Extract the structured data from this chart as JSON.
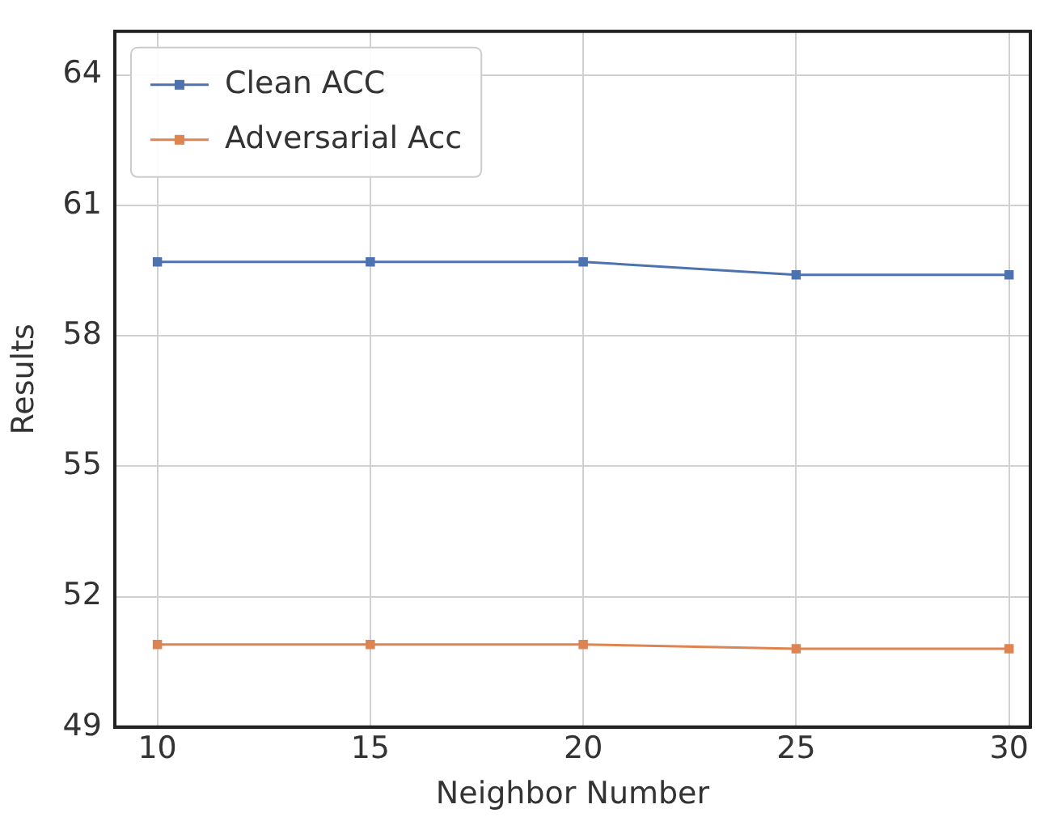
{
  "chart_data": {
    "type": "line",
    "xlabel": "Neighbor Number",
    "ylabel": "Results",
    "x": [
      10,
      15,
      20,
      25,
      30
    ],
    "series": [
      {
        "name": "Clean ACC",
        "color": "#4c72b0",
        "values": [
          59.7,
          59.7,
          59.7,
          59.4,
          59.4
        ]
      },
      {
        "name": "Adversarial Acc",
        "color": "#dd8452",
        "values": [
          50.9,
          50.9,
          50.9,
          50.8,
          50.8
        ]
      }
    ],
    "xlim": [
      9,
      30.5
    ],
    "xticks": [
      10,
      15,
      20,
      25,
      30
    ],
    "ylim": [
      49,
      65
    ],
    "yticks": [
      49,
      52,
      55,
      58,
      61,
      64
    ],
    "grid": true,
    "legend": "top left",
    "marker": "square",
    "line_style": "solid"
  }
}
